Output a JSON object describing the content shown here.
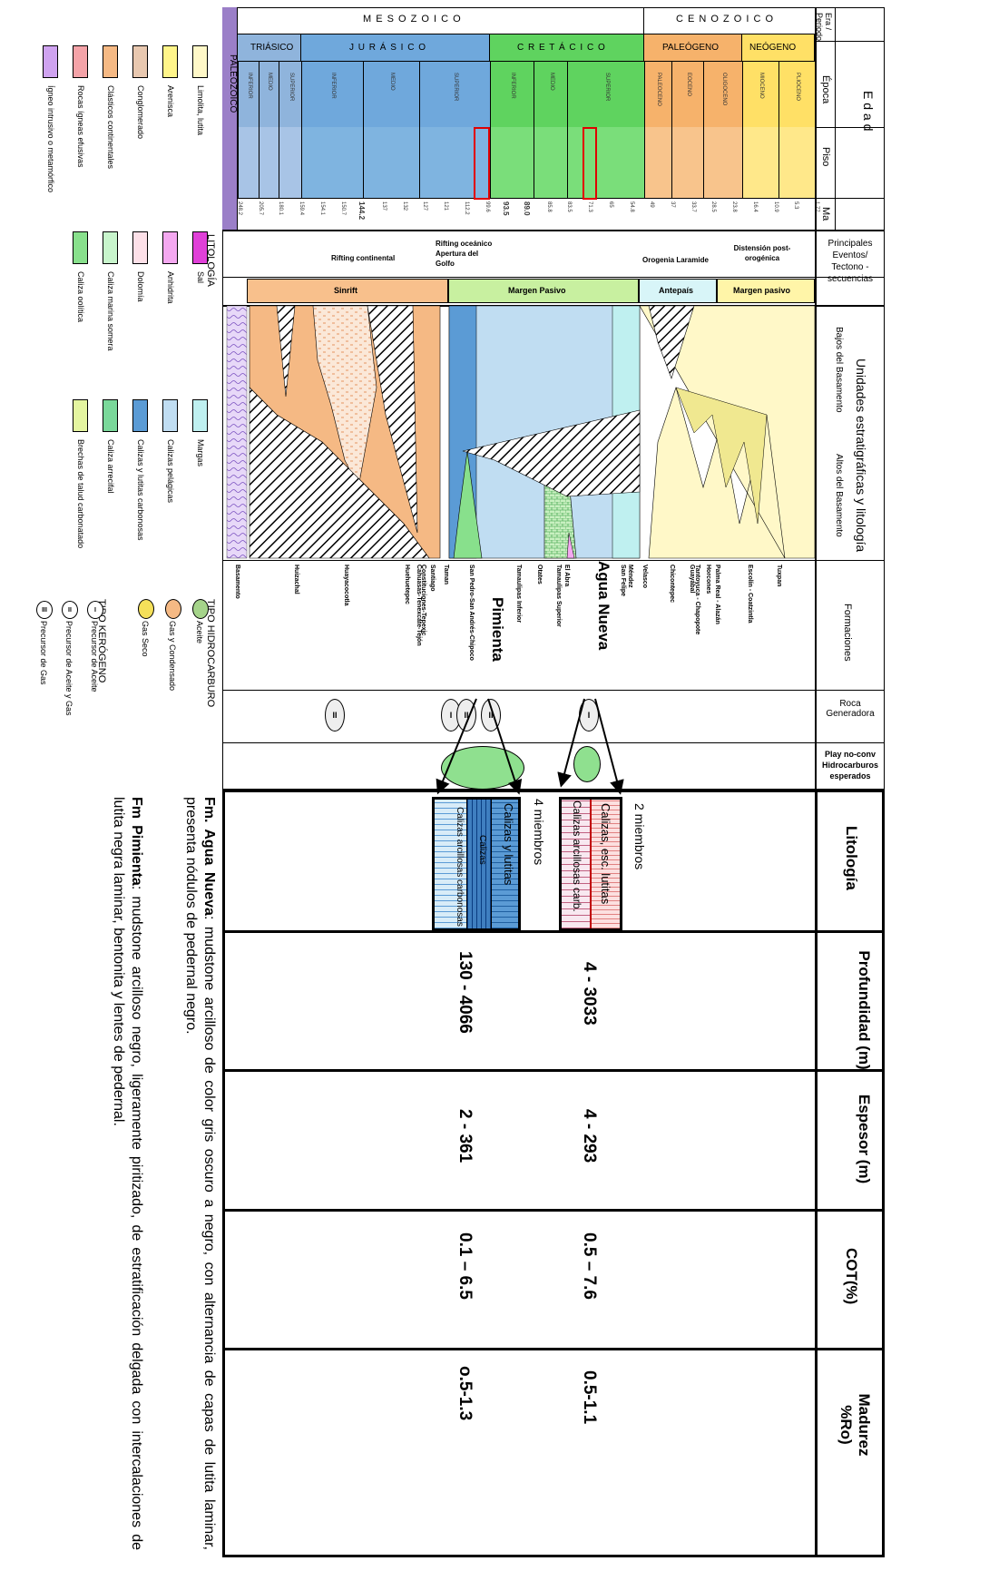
{
  "header": {
    "era_title": "Era / Periodo",
    "edad_title": "E d a d",
    "epoca_title": "Época",
    "piso_title": "Piso",
    "ma_title": "Ma",
    "events_title": "Principales Eventos/ Tectono - secuencias",
    "units_title": "Unidades estratigráficas y litología",
    "bajos_title": "Bajos del Basamento",
    "altos_title": "Altos del Basamento",
    "formaciones_title": "Formaciones",
    "roca_title": "Roca Generadora",
    "play_title": "Play no-conv Hidrocarburos esperados",
    "litologia_title": "Litología",
    "profundidad_title": "Profundidad (m)",
    "espesor_title": "Espesor (m)",
    "cot_title": "COT(%)",
    "madurez_title": "Madurez %Ro)"
  },
  "eras": {
    "mesozoico": "M E S O Z O I C O",
    "cenozoico": "C E N O Z O I C O",
    "paleozoico": "PALEOZOICO"
  },
  "periods": {
    "triasico": "TRIÁSICO",
    "jurasico": "J U R Á S I C O",
    "cretacico": "C R E T Á C I C O",
    "paleogeno": "PALEÓGENO",
    "neogeno": "NEÓGENO"
  },
  "epochs": [
    "INFERIOR",
    "MEDIO",
    "SUPERIOR",
    "INFERIOR",
    "MEDIO",
    "SUPERIOR",
    "INFERIOR",
    "MEDIO",
    "SUPERIOR",
    "PALEOCENO",
    "EOCENO",
    "OLIGOCENO",
    "MIOCENO",
    "PLIOCENO"
  ],
  "ages": [
    "248.2",
    "205.7",
    "180.1",
    "159.4",
    "154.1",
    "150.7",
    "144.2",
    "137",
    "132",
    "127",
    "121",
    "112.2",
    "99.6",
    "93.5",
    "89.0",
    "85.8",
    "83.5",
    "71.3",
    "65",
    "54.8",
    "49",
    "37",
    "33.7",
    "28.5",
    "23.8",
    "16.4",
    "10.9",
    "5.3",
    "1.77"
  ],
  "events": {
    "rifting_continental": "Rifting continental",
    "rifting_oceanico": "Rifting oceánico Apertura del Golfo",
    "orogenia": "Orogenia Laramide",
    "distension": "Distensión post-orogénica"
  },
  "tectono": [
    "Sinrift",
    "Margen Pasivo",
    "Antepaís",
    "Margen pasivo"
  ],
  "formations": [
    "Basamento",
    "Huizachal",
    "Huayacocotla",
    "Cahuasas-Tenexcate-Tejón",
    "Huehuetepec",
    "Santiago",
    "Constituciones-Tepexic",
    "Taman",
    "San Pedro-San Andrés-Chipoco",
    "Pimienta",
    "Tamaulipas Inferior",
    "Otates",
    "Tamaulipas Superior",
    "El Abra",
    "Agua Nueva",
    "San Felipe",
    "Méndez",
    "Velasco",
    "Chicontepec",
    "Tantoyuca - Chapopote",
    "Guayabal",
    "Palma Real - Alazán",
    "Horcones",
    "Escolín - Coatzintla",
    "Tuxpan"
  ],
  "highlight_formations": {
    "pimienta": "Pimienta",
    "agua_nueva": "Agua Nueva"
  },
  "roca_symbols": [
    "II",
    "I",
    "II",
    "II",
    "I"
  ],
  "lithology": {
    "agua_nueva_label": "2 miembros",
    "agua_nueva_bands": [
      "Calizas, esc. lutitas",
      "Calizas arcillosas carb."
    ],
    "pimienta_label": "4 miembros",
    "pimienta_bands": [
      "Calizas y lutitas",
      "Calizas",
      "Calizas arcillosas carbonosas"
    ]
  },
  "properties": {
    "agua_nueva": {
      "profundidad": "4 - 3033",
      "espesor": "4 - 293",
      "cot": "0.5 – 7.6",
      "madurez": "0.5-1.1"
    },
    "pimienta": {
      "profundidad": "130 - 4066",
      "espesor": "2 - 361",
      "cot": "0.1 – 6.5",
      "madurez": "o.5-1.3"
    }
  },
  "legend": {
    "title": "LITOLOGÍA",
    "items": [
      {
        "label": "Limolita, lutita",
        "color": "#fff8c8"
      },
      {
        "label": "Arenisca",
        "color": "#fff58a"
      },
      {
        "label": "Conglomerado",
        "color": "#e8c8b0"
      },
      {
        "label": "Clásticos continentales",
        "color": "#f5b984"
      },
      {
        "label": "Rocas ígneas efusivas",
        "color": "#f4a3a8"
      },
      {
        "label": "Ígneo intrusivo o metamórfico",
        "color": "#cfa3f0"
      },
      {
        "label": "Sal",
        "color": "#e040d8"
      },
      {
        "label": "Anhidrita",
        "color": "#f4a8f0"
      },
      {
        "label": "Dolomía",
        "color": "#fde0e8"
      },
      {
        "label": "Caliza marina somera",
        "color": "#c8f5cc"
      },
      {
        "label": "Caliza oolítica",
        "color": "#88e08c"
      },
      {
        "label": "Margas",
        "color": "#bff0f0"
      },
      {
        "label": "Calizas pelágicas",
        "color": "#c0ddf2"
      },
      {
        "label": "Calizas y lutitas carbonosas",
        "color": "#5b9bd5"
      },
      {
        "label": "Caliza arrecifal",
        "color": "#7ad89a"
      },
      {
        "label": "Brechas de talud carbonatado",
        "color": "#e4f5a0"
      }
    ]
  },
  "hydrocarbon": {
    "title": "TIPO HIDROCARBURO",
    "items": [
      {
        "label": "Aceite",
        "color": "#a5d48a"
      },
      {
        "label": "Gas y Condensado",
        "color": "#f5b984"
      },
      {
        "label": "Gas Seco",
        "color": "#f5e05a"
      }
    ]
  },
  "kerogen": {
    "title": "TIPO KERÓGENO",
    "items": [
      {
        "symbol": "I",
        "label": "Precursor de Aceite"
      },
      {
        "symbol": "II",
        "label": "Precursor de Aceite y Gas"
      },
      {
        "symbol": "III",
        "label": "Precursor de Gas"
      }
    ]
  },
  "description": {
    "agua_nueva_name": "Fm. Agua Nueva",
    "agua_nueva_text": ": mudstone arcilloso de color gris oscuro a negro, con alternancia de capas de lutita laminar, presenta nódulos de pedernal negro.",
    "pimienta_name": "Fm Pimienta",
    "pimienta_text": ": mudstone arcilloso negro, ligeramente piritizado, de estratificación delgada con intercalaciones de lutita negra laminar, bentonita y lentes de pedernal."
  },
  "colors": {
    "paleozoico": "#9b7fc8",
    "triasico": "#8fb4dc",
    "jurasico": "#6fa8dc",
    "cretacico": "#5fd35f",
    "paleogeno": "#f6b26b",
    "neogeno": "#ffe066",
    "sinrift": "#f8c08c",
    "margen_pasivo": "#c8f0a0",
    "antepais": "#d8f5f8",
    "margen_pasivo_2": "#fff5a8"
  }
}
